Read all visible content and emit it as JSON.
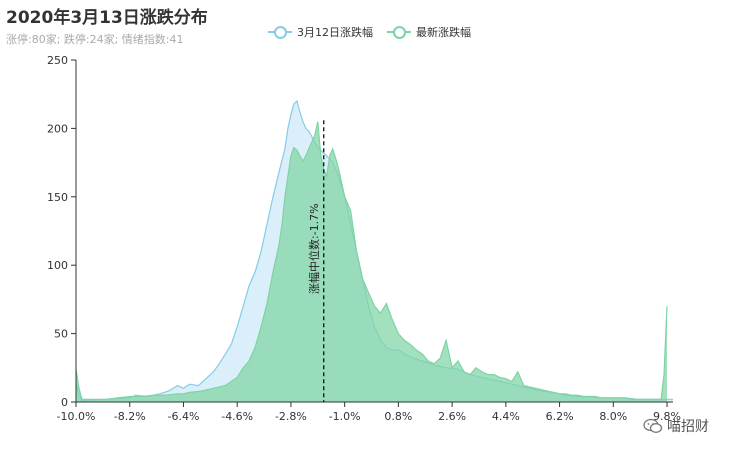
{
  "title": "2020年3月13日涨跌分布",
  "subtitle": "涨停:80家; 跌停:24家; 情绪指数:41",
  "watermark": "喵招财",
  "colors": {
    "series1_line": "#86cbe8",
    "series1_fill": "#cdeaf7",
    "series2_line": "#7ed3a4",
    "series2_fill": "#7fd4a4",
    "axis": "#333333",
    "median": "#000000"
  },
  "chart_data": {
    "type": "area",
    "ylim": [
      0,
      250
    ],
    "xlim": [
      -10.0,
      10.0
    ],
    "y_ticks": [
      0,
      50,
      100,
      150,
      200,
      250
    ],
    "x_tick_labels": [
      "-10.0%",
      "-8.2%",
      "-6.4%",
      "-4.6%",
      "-2.8%",
      "-1.0%",
      "0.8%",
      "2.6%",
      "4.4%",
      "6.2%",
      "8.0%",
      "9.8%"
    ],
    "x_tick_values": [
      -10.0,
      -8.2,
      -6.4,
      -4.6,
      -2.8,
      -1.0,
      0.8,
      2.6,
      4.4,
      6.2,
      8.0,
      9.8
    ],
    "legend_position": "top",
    "median": {
      "x": -1.7,
      "label": "涨幅中位数:-1.7%"
    },
    "series": [
      {
        "name": "3月12日涨跌幅",
        "x": [
          -10.0,
          -9.9,
          -9.8,
          -9.0,
          -8.2,
          -8.0,
          -7.6,
          -7.2,
          -6.9,
          -6.6,
          -6.4,
          -6.2,
          -5.9,
          -5.6,
          -5.4,
          -5.2,
          -5.0,
          -4.8,
          -4.6,
          -4.4,
          -4.2,
          -4.0,
          -3.8,
          -3.6,
          -3.4,
          -3.2,
          -3.0,
          -2.9,
          -2.8,
          -2.7,
          -2.6,
          -2.5,
          -2.4,
          -2.3,
          -2.2,
          -2.0,
          -1.9,
          -1.8,
          -1.6,
          -1.4,
          -1.2,
          -1.0,
          -0.8,
          -0.6,
          -0.4,
          -0.2,
          0.0,
          0.2,
          0.4,
          0.6,
          0.8,
          1.0,
          1.3,
          1.6,
          2.0,
          2.4,
          2.8,
          3.2,
          3.6,
          4.0,
          4.4,
          4.8,
          5.2,
          5.6,
          6.0,
          6.4,
          6.8,
          7.2,
          7.6,
          8.0,
          8.4,
          8.8,
          9.2,
          9.6,
          9.8,
          10.0
        ],
        "y": [
          14,
          5,
          1,
          2,
          3,
          5,
          4,
          6,
          8,
          12,
          10,
          13,
          12,
          18,
          22,
          28,
          35,
          42,
          55,
          70,
          85,
          95,
          110,
          130,
          150,
          168,
          185,
          200,
          210,
          218,
          220,
          212,
          205,
          200,
          198,
          190,
          186,
          184,
          180,
          175,
          165,
          150,
          130,
          110,
          90,
          70,
          55,
          45,
          40,
          38,
          38,
          35,
          32,
          30,
          27,
          25,
          24,
          20,
          18,
          16,
          14,
          12,
          10,
          8,
          7,
          5,
          4,
          4,
          3,
          3,
          3,
          2,
          2,
          2,
          2,
          2
        ]
      },
      {
        "name": "最新涨跌幅",
        "x": [
          -10.0,
          -9.9,
          -9.8,
          -9.4,
          -9.0,
          -8.6,
          -8.2,
          -7.8,
          -7.4,
          -7.0,
          -6.6,
          -6.4,
          -6.2,
          -5.8,
          -5.4,
          -5.0,
          -4.6,
          -4.4,
          -4.2,
          -4.0,
          -3.8,
          -3.6,
          -3.4,
          -3.2,
          -3.1,
          -3.0,
          -2.9,
          -2.8,
          -2.7,
          -2.6,
          -2.5,
          -2.4,
          -2.3,
          -2.2,
          -2.0,
          -1.9,
          -1.8,
          -1.7,
          -1.6,
          -1.5,
          -1.4,
          -1.3,
          -1.2,
          -1.1,
          -1.0,
          -0.8,
          -0.6,
          -0.4,
          -0.2,
          0.0,
          0.2,
          0.4,
          0.6,
          0.8,
          1.0,
          1.2,
          1.4,
          1.6,
          1.8,
          2.0,
          2.2,
          2.4,
          2.6,
          2.8,
          3.0,
          3.2,
          3.4,
          3.6,
          3.8,
          4.0,
          4.2,
          4.4,
          4.6,
          4.8,
          5.0,
          5.2,
          5.4,
          5.6,
          5.8,
          6.0,
          6.2,
          6.4,
          6.6,
          6.8,
          7.0,
          7.2,
          7.4,
          7.6,
          7.8,
          8.0,
          8.2,
          8.4,
          8.6,
          8.8,
          9.0,
          9.2,
          9.4,
          9.6,
          9.7,
          9.8
        ],
        "y": [
          24,
          10,
          2,
          2,
          2,
          3,
          4,
          4,
          5,
          5,
          6,
          6,
          7,
          8,
          10,
          12,
          18,
          25,
          30,
          40,
          55,
          72,
          95,
          115,
          130,
          150,
          165,
          180,
          186,
          184,
          180,
          176,
          180,
          185,
          195,
          205,
          180,
          170,
          165,
          180,
          185,
          178,
          170,
          160,
          150,
          140,
          110,
          90,
          80,
          70,
          65,
          72,
          60,
          50,
          45,
          42,
          38,
          35,
          30,
          28,
          32,
          45,
          25,
          30,
          22,
          20,
          25,
          22,
          20,
          20,
          18,
          17,
          15,
          22,
          12,
          11,
          10,
          9,
          8,
          7,
          6,
          6,
          5,
          5,
          4,
          4,
          4,
          3,
          3,
          3,
          3,
          3,
          2,
          2,
          2,
          2,
          2,
          2,
          20,
          70
        ]
      }
    ]
  }
}
